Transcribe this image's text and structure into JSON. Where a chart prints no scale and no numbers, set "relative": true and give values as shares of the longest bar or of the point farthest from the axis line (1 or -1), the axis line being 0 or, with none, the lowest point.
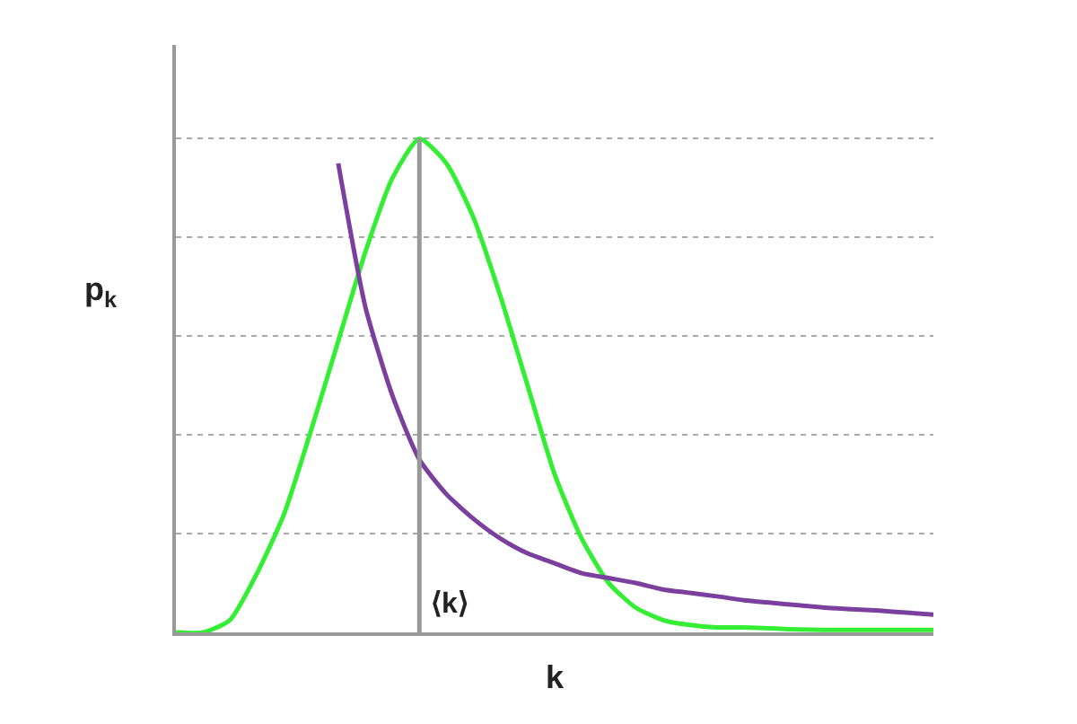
{
  "chart_data": {
    "type": "line",
    "relative": true,
    "xlabel": "k",
    "ylabel": "p$_{k}$",
    "categories": [
      null,
      null,
      null,
      null,
      null,
      null,
      null,
      null,
      null,
      null,
      null,
      null,
      null,
      null,
      null,
      null,
      null,
      null,
      null,
      null,
      null,
      null,
      null,
      null,
      null,
      null,
      null,
      null,
      null
    ],
    "series": [
      {
        "color": "#33ee33",
        "values": [
          0,
          0,
          0.025,
          0.12,
          0.24,
          0.41,
          0.59,
          0.77,
          0.92,
          1.0,
          0.95,
          0.84,
          0.68,
          0.5,
          0.32,
          0.19,
          0.1,
          0.05,
          0.025,
          0.015,
          0.01,
          0.01,
          0.008,
          0.006,
          0.005,
          0.005,
          0.005,
          0.005,
          0.005
        ]
      },
      {
        "color": "#7b3f9e",
        "values": [
          null,
          null,
          null,
          null,
          null,
          null,
          0.95,
          0.66,
          0.48,
          0.35,
          0.28,
          0.23,
          0.19,
          0.16,
          0.14,
          0.12,
          0.11,
          0.1,
          0.087,
          0.08,
          0.073,
          0.065,
          0.06,
          0.055,
          0.05,
          0.047,
          0.044,
          0.04,
          0.036
        ]
      }
    ],
    "annotations": [
      "⟨k⟩"
    ],
    "grid": "y",
    "marker": "none",
    "line_style": "solid"
  }
}
